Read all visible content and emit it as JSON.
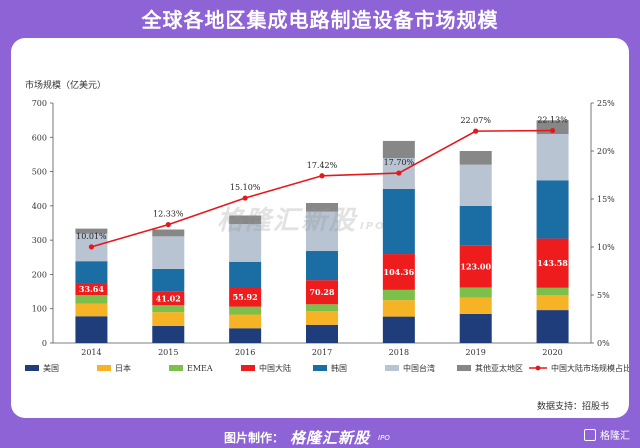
{
  "header": {
    "title": "全球各地区集成电路制造设备市场规模"
  },
  "watermark": {
    "text": "格隆汇新股",
    "sub": "IPO"
  },
  "source": "数据支持：招股书",
  "footer": {
    "label": "图片制作：",
    "brand": "格隆汇新股",
    "brand_sub": "IPO",
    "logo_text": "格隆汇"
  },
  "chart_data": {
    "type": "bar",
    "stacked": true,
    "ylabel": "市场规模（亿美元）",
    "ylim": [
      0,
      700
    ],
    "yticks": [
      0,
      100,
      200,
      300,
      400,
      500,
      600,
      700
    ],
    "y2lim": [
      0,
      25
    ],
    "y2ticks": [
      "0%",
      "5%",
      "10%",
      "15%",
      "20%",
      "25%"
    ],
    "categories": [
      "2014",
      "2015",
      "2016",
      "2017",
      "2018",
      "2019",
      "2020"
    ],
    "series": [
      {
        "name": "美国",
        "color": "#1f3d7a",
        "values": [
          78,
          50,
          43,
          53,
          77,
          85,
          96
        ]
      },
      {
        "name": "日本",
        "color": "#f5b325",
        "values": [
          37,
          40,
          40,
          40,
          48,
          47,
          43
        ]
      },
      {
        "name": "EMEA",
        "color": "#7cbf4a",
        "values": [
          25,
          20,
          23,
          20,
          30,
          30,
          22
        ]
      },
      {
        "name": "中国大陆",
        "color": "#ee1c1c",
        "values": [
          33.64,
          41.02,
          55.92,
          70.28,
          104.36,
          123.0,
          143.58
        ]
      },
      {
        "name": "韩国",
        "color": "#1a6ea3",
        "values": [
          65,
          65,
          75,
          85,
          190,
          115,
          170
        ]
      },
      {
        "name": "中国台湾",
        "color": "#b8c4d2",
        "values": [
          80,
          95,
          110,
          115,
          90,
          120,
          135
        ]
      },
      {
        "name": "其他亚太地区",
        "color": "#878787",
        "values": [
          15,
          20,
          25,
          25,
          50,
          40,
          40
        ]
      }
    ],
    "data_labels": [
      "33.64",
      "41.02",
      "55.92",
      "70.28",
      "104.36",
      "123.00",
      "143.58"
    ],
    "line": {
      "name": "中国大陆市场规模占比",
      "color": "#e8171c",
      "values": [
        10.01,
        12.33,
        15.1,
        17.42,
        17.7,
        22.07,
        22.13
      ],
      "labels": [
        "10.01%",
        "12.33%",
        "15.10%",
        "17.42%",
        "17.70%",
        "22.07%",
        "22.13%"
      ]
    },
    "legend_position": "bottom"
  }
}
